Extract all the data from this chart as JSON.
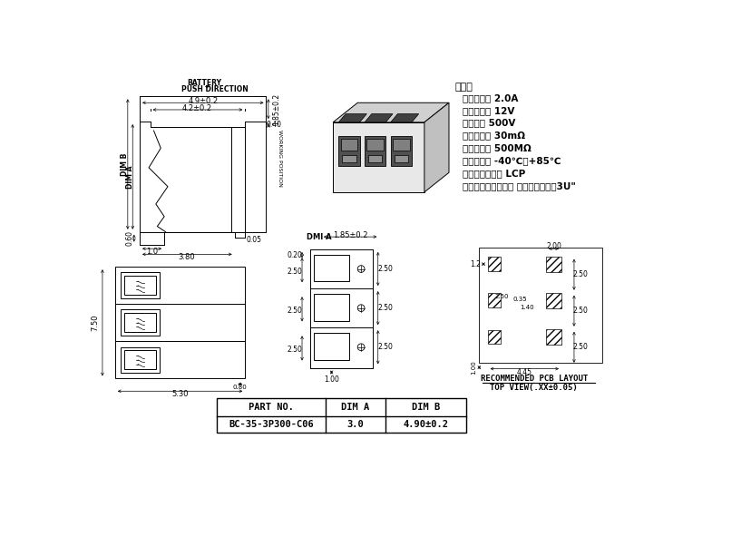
{
  "bg_color": "#ffffff",
  "specs_title": "性能：",
  "specs": [
    "额定电流： 2.0A",
    "额定电压： 12V",
    "耐电压： 500V",
    "接触电限： 30mΩ",
    "绣缘电限： 500MΩ",
    "工作温度： -40℃～+85℃",
    "塑件（材质）： LCP",
    "接接触点（材质）： 磷销，触点镑金3U\""
  ],
  "table_headers": [
    "PART NO.",
    "DIM A",
    "DIM B"
  ],
  "table_row": [
    "BC-35-3P300-C06",
    "3.0",
    "4.90±0.2"
  ]
}
